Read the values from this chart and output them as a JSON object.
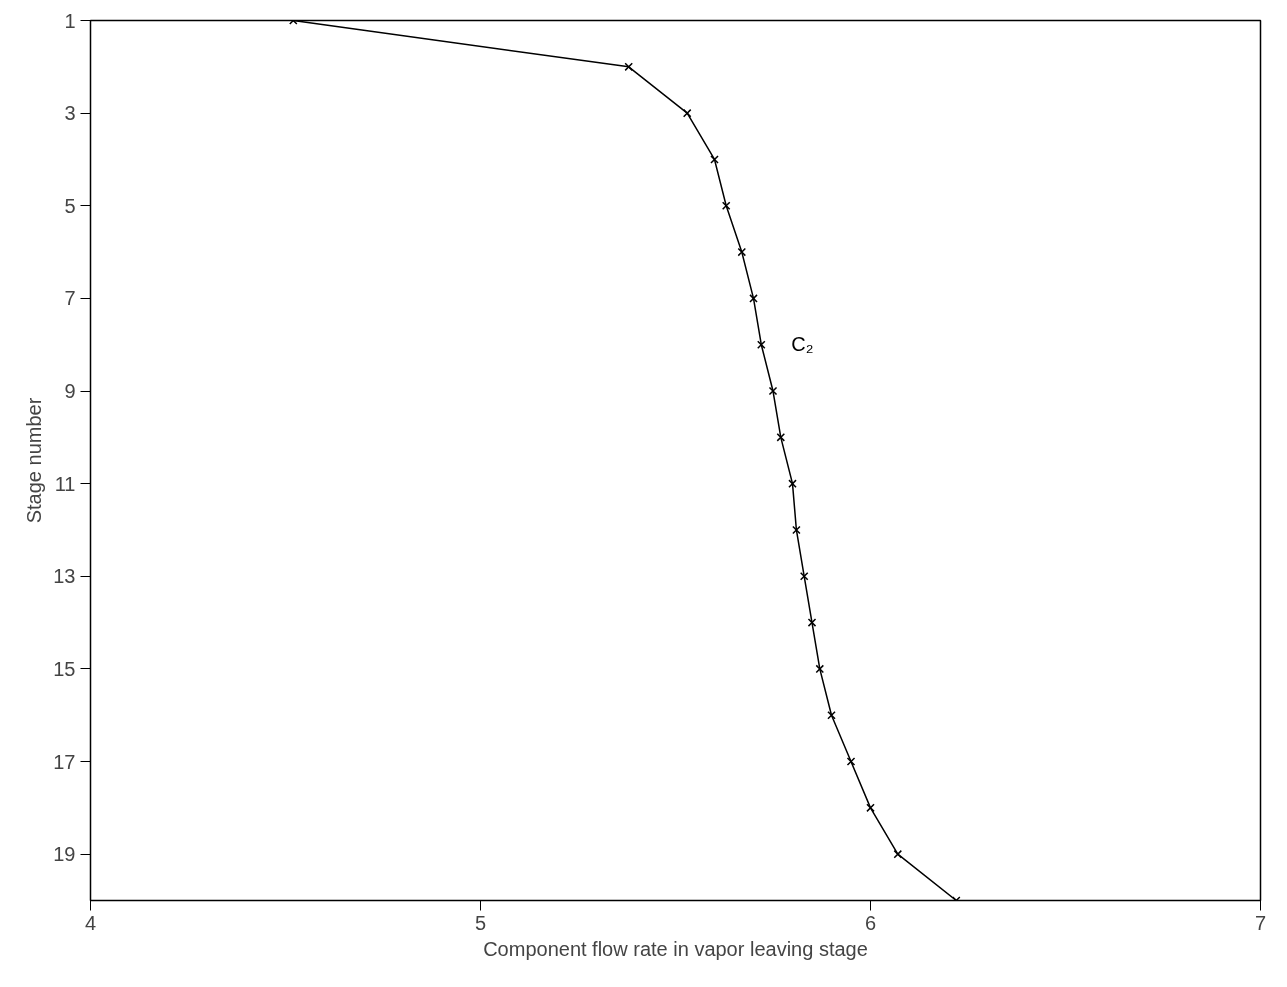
{
  "chart_data": {
    "type": "line",
    "xlabel": "Component flow rate in vapor leaving stage",
    "ylabel": "Stage number",
    "x": [
      4.52,
      5.38,
      5.53,
      5.6,
      5.63,
      5.67,
      5.7,
      5.72,
      5.75,
      5.77,
      5.8,
      5.81,
      5.83,
      5.85,
      5.87,
      5.9,
      5.95,
      6.0,
      6.07,
      6.22
    ],
    "series": [
      {
        "name": "C₂",
        "color": "#000000",
        "values": [
          1,
          2,
          3,
          4,
          5,
          6,
          7,
          8,
          9,
          10,
          11,
          12,
          13,
          14,
          15,
          16,
          17,
          18,
          19,
          20
        ]
      }
    ],
    "xlim": [
      4,
      7
    ],
    "xticks": [
      4,
      5,
      6,
      7
    ],
    "ylim": [
      20,
      1
    ],
    "yticks": [
      1,
      3,
      5,
      7,
      9,
      11,
      13,
      15,
      17,
      19
    ],
    "marker": "cross",
    "line_style": "solid",
    "grid": false,
    "legend": false
  }
}
